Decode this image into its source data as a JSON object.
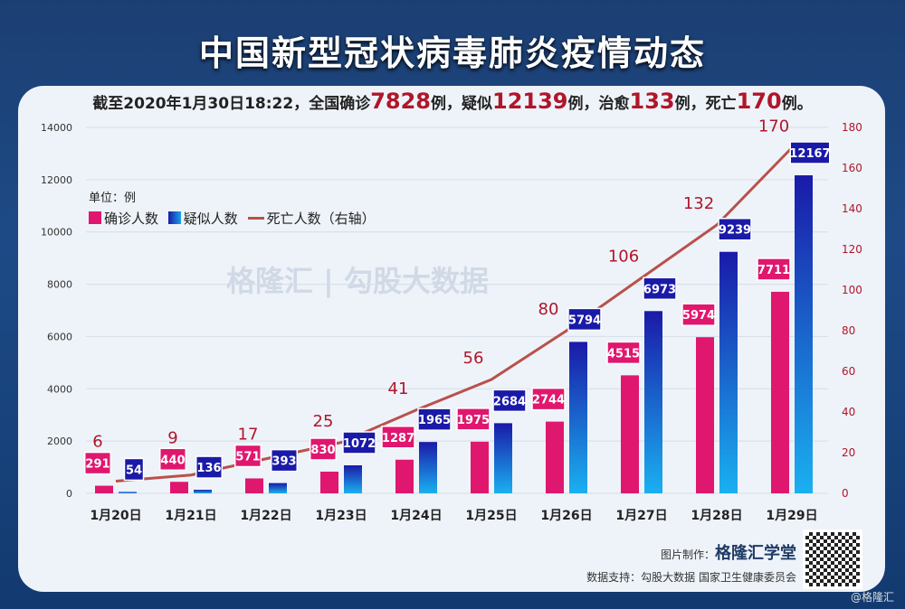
{
  "title": "中国新型冠状病毒肺炎疫情动态",
  "summary": {
    "prefix": "截至2020年1月30日18:22，全国确诊",
    "confirmed": "7828",
    "t1": "例，疑似",
    "suspected": "12139",
    "t2": "例，治愈",
    "cured": "133",
    "t3": "例，死亡",
    "deaths": "170",
    "t4": "例。"
  },
  "watermark": "格隆汇 | 勾股大数据",
  "credit": {
    "label": "图片制作：",
    "brand": "格隆汇学堂"
  },
  "source": "数据支持：勾股大数据 国家卫生健康委员会",
  "corner_watermark": "@格隆汇",
  "chart_data": {
    "type": "bar",
    "unit": "单位：例",
    "categories": [
      "1月20日",
      "1月21日",
      "1月22日",
      "1月23日",
      "1月24日",
      "1月25日",
      "1月26日",
      "1月27日",
      "1月28日",
      "1月29日"
    ],
    "series": [
      {
        "name": "确诊人数",
        "type": "bar",
        "axis": "left",
        "color": "#e0176e",
        "values": [
          291,
          440,
          571,
          830,
          1287,
          1975,
          2744,
          4515,
          5974,
          7711
        ]
      },
      {
        "name": "疑似人数",
        "type": "bar",
        "axis": "left",
        "color": "#1a1aa8",
        "values": [
          54,
          136,
          393,
          1072,
          1965,
          2684,
          5794,
          6973,
          9239,
          12167
        ]
      },
      {
        "name": "死亡人数（右轴）",
        "type": "line",
        "axis": "right",
        "color": "#b9514c",
        "values": [
          6,
          9,
          17,
          25,
          41,
          56,
          80,
          106,
          132,
          170
        ]
      }
    ],
    "y_left": {
      "range": [
        0,
        14000
      ],
      "ticks": [
        0,
        2000,
        4000,
        6000,
        8000,
        10000,
        12000,
        14000
      ]
    },
    "y_right": {
      "range": [
        0,
        180
      ],
      "ticks": [
        0,
        20,
        40,
        60,
        80,
        100,
        120,
        140,
        160,
        180
      ]
    },
    "grid": true,
    "legend_position": "top-left"
  }
}
